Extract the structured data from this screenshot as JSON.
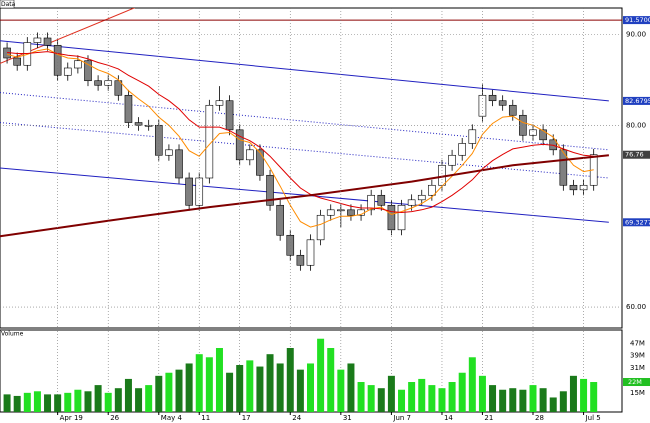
{
  "chart_data": {
    "type": "candlestick",
    "panel_title": "Data",
    "volume_title": "Volume",
    "ylim": [
      57.7,
      92.9
    ],
    "yticks": [
      {
        "value": 90,
        "label": "90.00"
      },
      {
        "value": 80,
        "label": "80.00"
      },
      {
        "value": 60,
        "label": "60.00"
      }
    ],
    "vylim": [
      2.6,
      55
    ],
    "vyticks": [
      {
        "value": 47,
        "label": "47M"
      },
      {
        "value": 39,
        "label": "39M"
      },
      {
        "value": 31,
        "label": "31M"
      },
      {
        "value": 15,
        "label": "15M"
      }
    ],
    "xlim": [
      -0.7,
      60.8
    ],
    "xticks": [
      {
        "value": 5,
        "label": "Apr 19"
      },
      {
        "value": 10,
        "label": "26"
      },
      {
        "value": 15,
        "label": "May 4"
      },
      {
        "value": 19,
        "label": "11"
      },
      {
        "value": 23,
        "label": "17"
      },
      {
        "value": 28,
        "label": "24"
      },
      {
        "value": 33,
        "label": "31"
      },
      {
        "value": 38,
        "label": "Jun 7"
      },
      {
        "value": 43,
        "label": "14"
      },
      {
        "value": 47,
        "label": "21"
      },
      {
        "value": 52,
        "label": "28"
      },
      {
        "value": 57,
        "label": "Jul 5"
      }
    ],
    "grid": true,
    "up_color": "#ffffff",
    "down_color": "#808080",
    "volume_up_color": "#22e022",
    "volume_down_color": "#1a7a1a",
    "open": [
      88.5,
      87.4,
      86.6,
      89.1,
      89.6,
      88.8,
      85.5,
      86.3,
      87.1,
      84.9,
      84.4,
      84.9,
      83.3,
      80.3,
      80.0,
      80.0,
      76.7,
      77.3,
      74.2,
      71.2,
      74.2,
      82.2,
      82.7,
      79.5,
      76.2,
      77.3,
      74.5,
      71.2,
      67.9,
      65.7,
      64.6,
      67.4,
      70.1,
      70.7,
      70.7,
      70.1,
      70.7,
      72.3,
      71.2,
      68.5,
      71.2,
      71.8,
      72.3,
      73.4,
      75.6,
      76.7,
      78.0,
      81.0,
      83.3,
      82.7,
      82.2,
      81.1,
      78.9,
      79.5,
      78.4,
      77.3,
      73.4,
      72.9,
      73.4
    ],
    "high": [
      89.1,
      88.0,
      89.7,
      90.2,
      90.2,
      89.4,
      86.9,
      87.7,
      87.7,
      85.5,
      85.5,
      85.5,
      83.9,
      80.9,
      80.6,
      80.6,
      77.9,
      77.9,
      74.8,
      74.8,
      82.8,
      84.3,
      83.3,
      80.1,
      77.9,
      77.9,
      75.1,
      71.8,
      68.5,
      66.3,
      68.0,
      70.7,
      71.3,
      71.3,
      71.3,
      71.3,
      72.9,
      72.9,
      71.8,
      71.8,
      72.4,
      72.9,
      74.0,
      76.2,
      77.3,
      78.6,
      80.1,
      84.5,
      83.9,
      83.3,
      82.8,
      81.7,
      80.1,
      80.1,
      79.0,
      77.9,
      74.0,
      74.0,
      77.4
    ],
    "low": [
      86.8,
      86.0,
      86.0,
      88.5,
      88.2,
      84.9,
      84.9,
      85.7,
      84.3,
      83.8,
      83.8,
      82.7,
      79.7,
      79.4,
      79.4,
      76.1,
      76.1,
      73.6,
      70.6,
      70.6,
      73.6,
      81.6,
      78.9,
      75.6,
      75.6,
      73.9,
      70.6,
      67.3,
      65.1,
      64.0,
      64.0,
      66.8,
      69.5,
      68.8,
      69.5,
      69.5,
      70.1,
      70.6,
      67.9,
      67.9,
      70.6,
      71.2,
      71.7,
      72.8,
      75.0,
      76.1,
      77.4,
      80.4,
      82.1,
      81.6,
      80.5,
      78.3,
      78.3,
      77.8,
      76.7,
      72.8,
      72.3,
      72.3,
      72.8
    ],
    "close": [
      87.4,
      86.6,
      89.1,
      89.6,
      88.8,
      85.5,
      86.3,
      87.1,
      84.9,
      84.4,
      84.9,
      83.3,
      80.3,
      80.0,
      80.0,
      76.7,
      77.3,
      74.2,
      71.2,
      74.2,
      82.2,
      82.7,
      79.5,
      76.2,
      77.3,
      74.5,
      71.2,
      67.9,
      65.7,
      64.6,
      67.4,
      70.1,
      70.7,
      70.7,
      70.1,
      70.7,
      72.3,
      71.2,
      68.5,
      71.2,
      71.8,
      72.3,
      73.4,
      75.6,
      76.7,
      78.0,
      79.5,
      83.3,
      82.7,
      82.2,
      81.1,
      78.9,
      79.5,
      78.4,
      77.3,
      73.4,
      72.9,
      73.4,
      76.76
    ],
    "volume": [
      14,
      13,
      15,
      16,
      14,
      14,
      15,
      17,
      16,
      20,
      15,
      18,
      24,
      18,
      20,
      26,
      28,
      30,
      34,
      40,
      38,
      44,
      28,
      33,
      36,
      32,
      40,
      34,
      44,
      30,
      34,
      50,
      44,
      30,
      34,
      22,
      20,
      18,
      26,
      17,
      22,
      24,
      20,
      18,
      22,
      28,
      38,
      26,
      20,
      17,
      18,
      17,
      20,
      18,
      12,
      16,
      26,
      24,
      22
    ],
    "overlays": [
      {
        "color": "#ff8c00",
        "values": [
          87.8,
          87.5,
          87.8,
          88.2,
          88.4,
          87.8,
          87.4,
          87.3,
          86.7,
          86.1,
          85.7,
          85.0,
          83.8,
          82.9,
          82.1,
          80.9,
          80.0,
          78.8,
          77.2,
          76.6,
          77.9,
          79.1,
          79.2,
          78.4,
          78.1,
          77.0,
          75.3,
          73.3,
          71.2,
          69.4,
          68.8,
          69.1,
          69.6,
          70.0,
          70.0,
          70.2,
          70.8,
          71.0,
          70.2,
          70.5,
          70.9,
          71.4,
          72.1,
          73.3,
          74.4,
          75.6,
          76.9,
          79.0,
          80.2,
          80.9,
          81.0,
          80.3,
          80.0,
          79.4,
          78.7,
          77.0,
          75.6,
          74.9,
          75.1
        ]
      },
      {
        "color": "#e00000",
        "values": [
          88.0,
          87.9,
          87.9,
          88.0,
          88.1,
          87.9,
          87.7,
          87.6,
          87.3,
          86.9,
          86.6,
          86.2,
          85.5,
          84.9,
          84.3,
          83.4,
          82.7,
          81.8,
          80.6,
          79.8,
          79.8,
          79.8,
          79.4,
          78.8,
          78.3,
          77.6,
          76.6,
          75.4,
          74.2,
          73.1,
          72.4,
          72.0,
          71.7,
          71.4,
          71.1,
          70.9,
          70.9,
          70.8,
          70.5,
          70.4,
          70.5,
          70.7,
          71.0,
          71.6,
          72.3,
          73.1,
          74.0,
          75.2,
          76.1,
          76.8,
          77.4,
          77.6,
          77.8,
          77.9,
          77.8,
          77.4,
          77.0,
          76.7,
          76.6
        ]
      },
      {
        "color": "#800000",
        "width": 2,
        "x": [
          -0.7,
          10,
          20,
          30,
          40,
          50,
          59.5
        ],
        "values": [
          67.8,
          69.5,
          71.0,
          72.3,
          73.8,
          75.6,
          76.7
        ]
      }
    ],
    "lines": [
      {
        "color": "#e03020",
        "dash": false,
        "x": [
          -0.7,
          14.3
        ],
        "values": [
          86.8,
          93.7
        ]
      },
      {
        "color": "#8b0000",
        "dash": false,
        "x": [
          -0.7,
          60.8
        ],
        "values": [
          91.57,
          91.57
        ]
      },
      {
        "color": "#2020c0",
        "dash": false,
        "x": [
          -0.7,
          59.5
        ],
        "values": [
          89.3,
          82.6795
        ]
      },
      {
        "color": "#2020c0",
        "dash": true,
        "x": [
          -0.7,
          59.5
        ],
        "values": [
          83.6,
          77.3
        ]
      },
      {
        "color": "#2020c0",
        "dash": true,
        "x": [
          -0.7,
          59.5
        ],
        "values": [
          80.3,
          74.2
        ]
      },
      {
        "color": "#2020c0",
        "dash": false,
        "x": [
          -0.7,
          59.5
        ],
        "values": [
          75.3,
          69.3277
        ]
      }
    ],
    "price_tags": [
      {
        "value": 91.57,
        "label": "91.5700",
        "color": "#2040c0"
      },
      {
        "value": 82.6795,
        "label": "82.6795",
        "color": "#2040c0"
      },
      {
        "value": 76.76,
        "label": "76.76",
        "color": "#404040"
      },
      {
        "value": 69.3277,
        "label": "69.3277",
        "color": "#2040c0"
      }
    ],
    "volume_tag": {
      "value": 22,
      "label": "22M",
      "color": "#22c022"
    }
  }
}
